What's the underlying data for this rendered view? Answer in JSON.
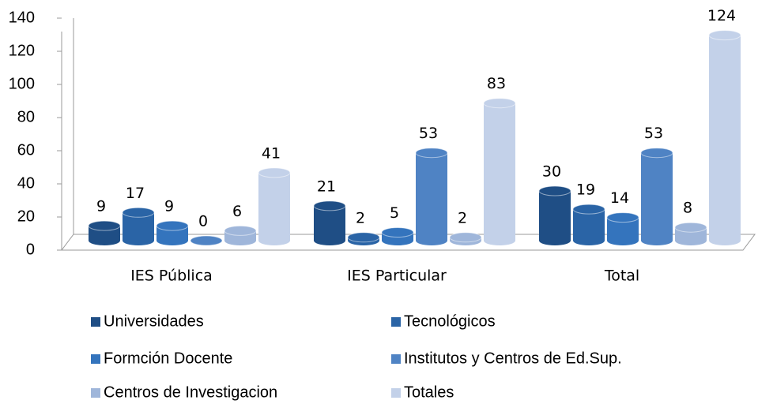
{
  "chart_data": {
    "type": "bar",
    "categories": [
      "IES Pública",
      "IES Particular",
      "Total"
    ],
    "series": [
      {
        "name": "Universidades",
        "color": "#1f4e85",
        "values": [
          9,
          21,
          30
        ]
      },
      {
        "name": "Tecnológicos",
        "color": "#2a64a6",
        "values": [
          17,
          2,
          19
        ]
      },
      {
        "name": "Formción Docente",
        "color": "#3474bd",
        "values": [
          9,
          5,
          14
        ]
      },
      {
        "name": "Institutos y Centros de Ed.Sup.",
        "color": "#4f83c4",
        "values": [
          0,
          53,
          53
        ]
      },
      {
        "name": "Centros de Investigacion",
        "color": "#9fb6da",
        "values": [
          6,
          2,
          8
        ]
      },
      {
        "name": "Totales",
        "color": "#c3d1e9",
        "values": [
          41,
          83,
          124
        ]
      }
    ],
    "ylim": [
      0,
      140
    ],
    "yticks": [
      0,
      20,
      40,
      60,
      80,
      100,
      120,
      140
    ],
    "grid": false
  }
}
